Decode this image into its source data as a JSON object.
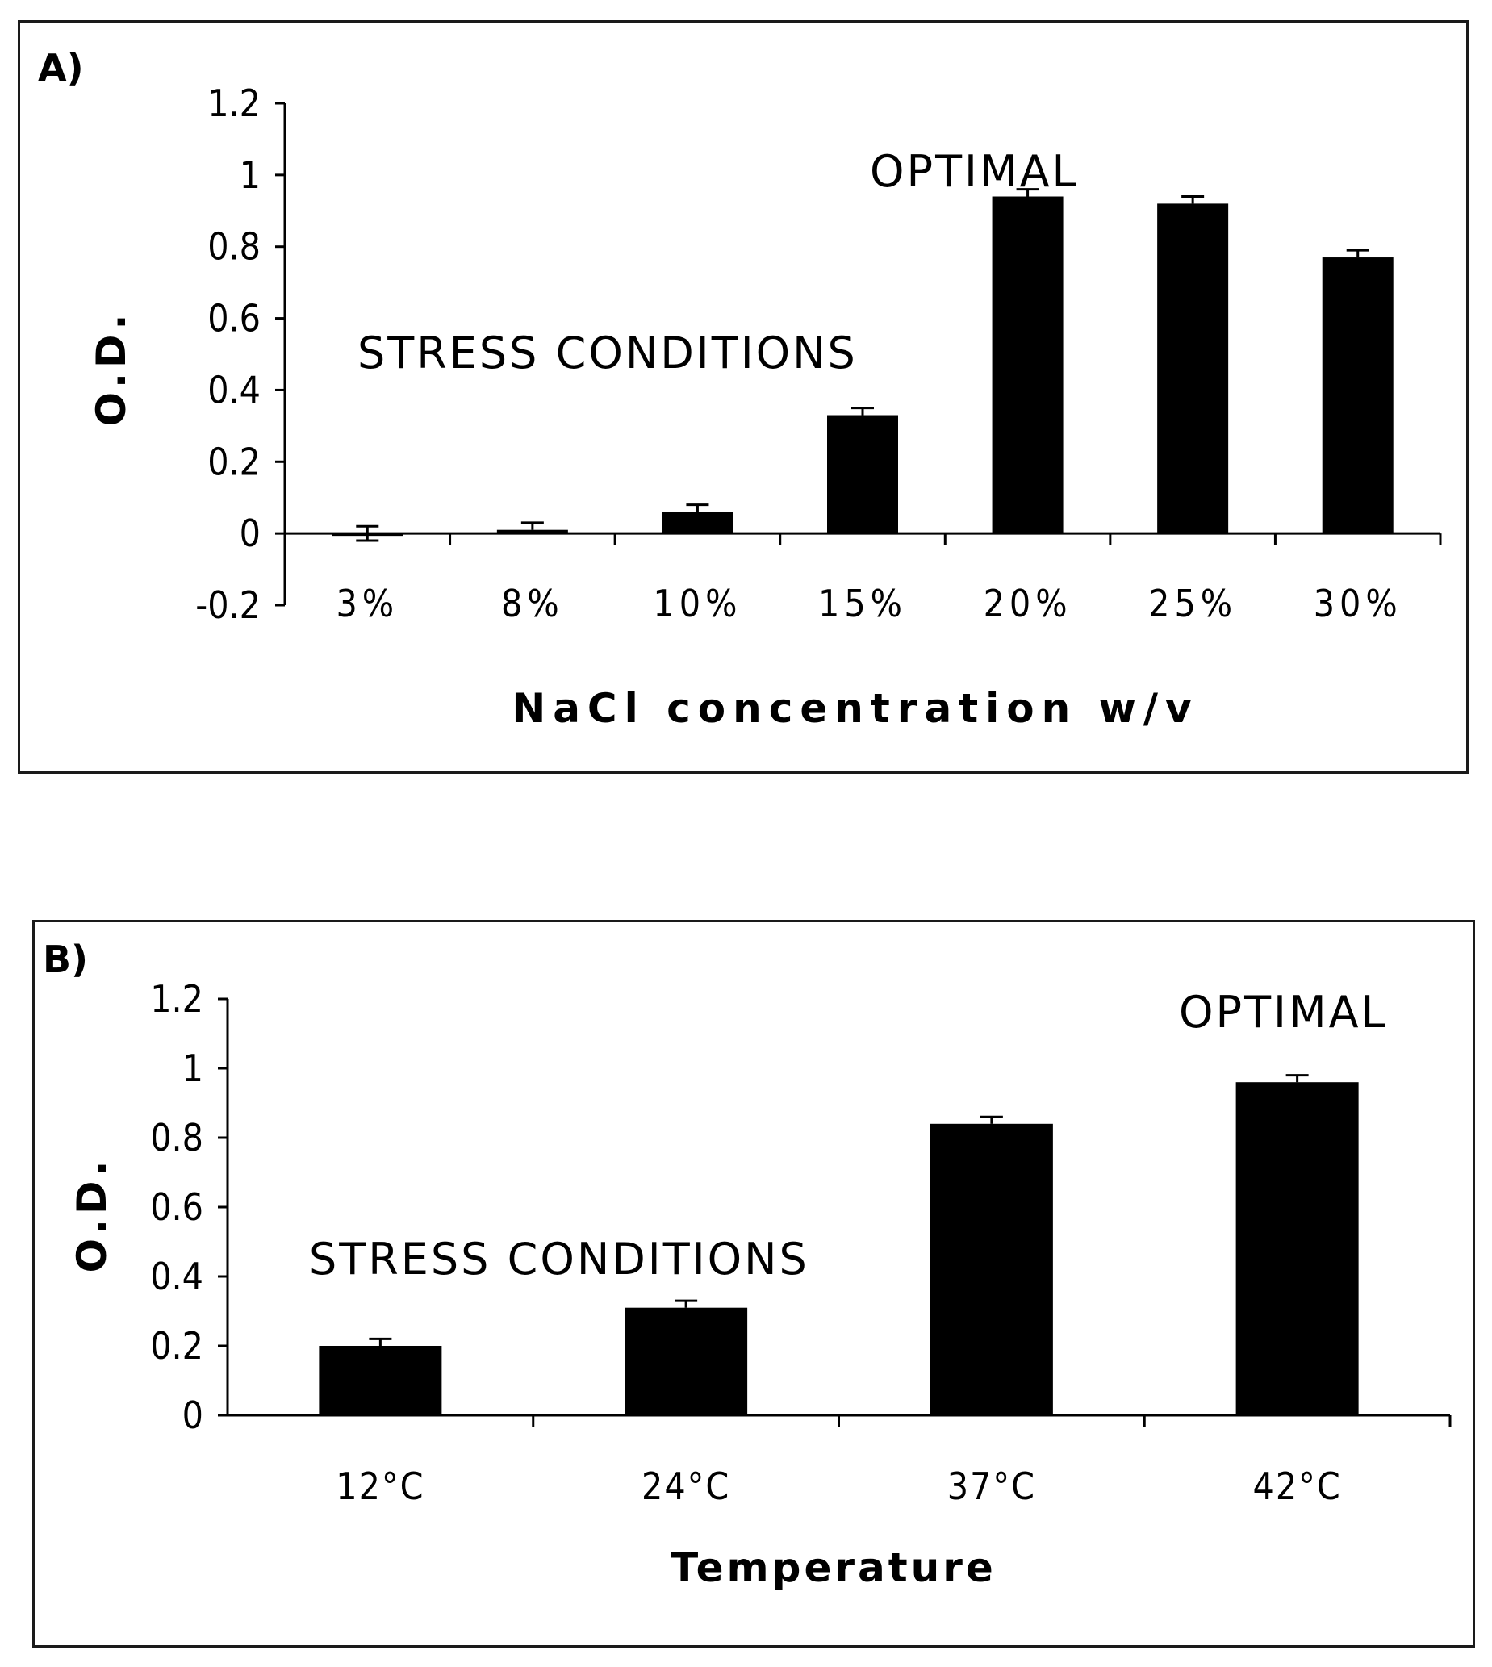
{
  "chart_data": [
    {
      "panel_label": "A)",
      "type": "bar",
      "categories": [
        "3%",
        "8%",
        "10%",
        "15%",
        "20%",
        "25%",
        "30%"
      ],
      "values": [
        0.0,
        0.01,
        0.06,
        0.33,
        0.94,
        0.92,
        0.77
      ],
      "errors": [
        0.02,
        0.02,
        0.02,
        0.02,
        0.02,
        0.02,
        0.02
      ],
      "xlabel": "NaCl concentration w/v",
      "ylabel": "O.D.",
      "ylim": [
        -0.2,
        1.2
      ],
      "yticks": [
        -0.2,
        0,
        0.2,
        0.4,
        0.6,
        0.8,
        1,
        1.2
      ],
      "ytick_labels": [
        "-0.2",
        "0",
        "0.2",
        "0.4",
        "0.6",
        "0.8",
        "1",
        "1.2"
      ],
      "annotations": [
        "STRESS CONDITIONS",
        "OPTIMAL"
      ],
      "color": "#000000"
    },
    {
      "panel_label": "B)",
      "type": "bar",
      "categories": [
        "12°C",
        "24°C",
        "37°C",
        "42°C"
      ],
      "values": [
        0.2,
        0.31,
        0.84,
        0.96
      ],
      "errors": [
        0.02,
        0.02,
        0.02,
        0.02
      ],
      "xlabel": "Temperature",
      "ylabel": "O.D.",
      "ylim": [
        0,
        1.2
      ],
      "yticks": [
        0,
        0.2,
        0.4,
        0.6,
        0.8,
        1,
        1.2
      ],
      "ytick_labels": [
        "0",
        "0.2",
        "0.4",
        "0.6",
        "0.8",
        "1",
        "1.2"
      ],
      "annotations": [
        "STRESS CONDITIONS",
        "OPTIMAL"
      ],
      "color": "#000000"
    }
  ]
}
